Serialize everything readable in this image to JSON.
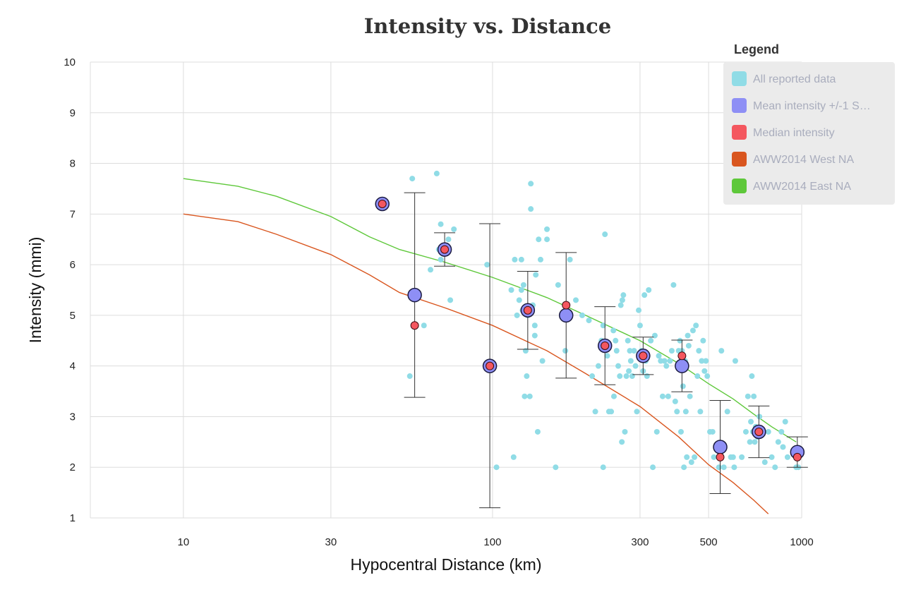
{
  "chart_data": {
    "type": "scatter",
    "title": "Intensity vs. Distance",
    "xlabel": "Hypocentral Distance (km)",
    "ylabel": "Intensity (mmi)",
    "xscale": "log",
    "xlim": [
      5,
      1000
    ],
    "ylim": [
      1,
      10
    ],
    "x_ticks": [
      10,
      30,
      100,
      300,
      500,
      1000
    ],
    "y_ticks": [
      1,
      2,
      3,
      4,
      5,
      6,
      7,
      8,
      9,
      10
    ],
    "grid": true,
    "legend": {
      "title": "Legend",
      "position": "top-right",
      "entries": [
        {
          "label": "All reported data",
          "color": "#90dce6"
        },
        {
          "label": "Mean intensity +/-1 S…",
          "color": "#8e8ff5"
        },
        {
          "label": "Median intensity",
          "color": "#f4575f"
        },
        {
          "label": "AWW2014 West NA",
          "color": "#d9561f"
        },
        {
          "label": "AWW2014 East NA",
          "color": "#5ec83a"
        }
      ]
    },
    "colors": {
      "reported": "#90dce6",
      "mean": "#8e8ff5",
      "median": "#f4575f",
      "west": "#d9561f",
      "east": "#5ec83a",
      "grid": "#dddddd",
      "errorbar": "#333333"
    },
    "series": [
      {
        "name": "All reported data",
        "points": [
          [
            44,
            7.2
          ],
          [
            55,
            7.7
          ],
          [
            66,
            7.8
          ],
          [
            54,
            3.8
          ],
          [
            60,
            4.8
          ],
          [
            63,
            5.9
          ],
          [
            67,
            6.3
          ],
          [
            68,
            6.1
          ],
          [
            72,
            6.5
          ],
          [
            73,
            5.3
          ],
          [
            75,
            6.7
          ],
          [
            68,
            6.8
          ],
          [
            96,
            6.0
          ],
          [
            103,
            2.0
          ],
          [
            115,
            5.5
          ],
          [
            117,
            2.2
          ],
          [
            118,
            6.1
          ],
          [
            120,
            5.0
          ],
          [
            122,
            5.3
          ],
          [
            124,
            6.1
          ],
          [
            124,
            5.5
          ],
          [
            125,
            5.1
          ],
          [
            126,
            5.6
          ],
          [
            127,
            3.4
          ],
          [
            128,
            4.3
          ],
          [
            129,
            3.8
          ],
          [
            130,
            5.0
          ],
          [
            132,
            3.4
          ],
          [
            133,
            7.6
          ],
          [
            133,
            7.1
          ],
          [
            135,
            5.2
          ],
          [
            137,
            4.8
          ],
          [
            137,
            4.6
          ],
          [
            138,
            5.8
          ],
          [
            140,
            2.7
          ],
          [
            141,
            6.5
          ],
          [
            143,
            6.1
          ],
          [
            145,
            4.1
          ],
          [
            150,
            6.7
          ],
          [
            150,
            6.5
          ],
          [
            160,
            2.0
          ],
          [
            163,
            5.6
          ],
          [
            172,
            4.3
          ],
          [
            178,
            6.1
          ],
          [
            186,
            5.3
          ],
          [
            195,
            5.0
          ],
          [
            205,
            4.9
          ],
          [
            210,
            3.8
          ],
          [
            215,
            3.1
          ],
          [
            220,
            4.0
          ],
          [
            225,
            4.5
          ],
          [
            228,
            2.0
          ],
          [
            228,
            4.8
          ],
          [
            231,
            6.6
          ],
          [
            235,
            4.2
          ],
          [
            238,
            3.1
          ],
          [
            242,
            3.1
          ],
          [
            246,
            4.7
          ],
          [
            247,
            3.4
          ],
          [
            250,
            4.5
          ],
          [
            252,
            4.3
          ],
          [
            255,
            4.0
          ],
          [
            258,
            3.8
          ],
          [
            260,
            5.2
          ],
          [
            262,
            2.5
          ],
          [
            263,
            5.3
          ],
          [
            265,
            5.4
          ],
          [
            268,
            2.7
          ],
          [
            271,
            3.8
          ],
          [
            274,
            4.5
          ],
          [
            276,
            3.9
          ],
          [
            278,
            4.3
          ],
          [
            280,
            4.1
          ],
          [
            283,
            3.8
          ],
          [
            287,
            4.3
          ],
          [
            290,
            4.0
          ],
          [
            293,
            3.1
          ],
          [
            297,
            5.1
          ],
          [
            300,
            4.8
          ],
          [
            303,
            4.3
          ],
          [
            307,
            3.9
          ],
          [
            310,
            5.4
          ],
          [
            313,
            4.1
          ],
          [
            316,
            3.8
          ],
          [
            320,
            5.5
          ],
          [
            325,
            4.5
          ],
          [
            330,
            2.0
          ],
          [
            335,
            4.6
          ],
          [
            340,
            2.7
          ],
          [
            345,
            4.2
          ],
          [
            350,
            4.1
          ],
          [
            355,
            3.4
          ],
          [
            360,
            4.1
          ],
          [
            365,
            4.0
          ],
          [
            370,
            3.4
          ],
          [
            375,
            4.1
          ],
          [
            380,
            4.3
          ],
          [
            385,
            5.6
          ],
          [
            390,
            3.3
          ],
          [
            395,
            3.1
          ],
          [
            400,
            4.3
          ],
          [
            404,
            4.5
          ],
          [
            407,
            2.7
          ],
          [
            410,
            4.3
          ],
          [
            413,
            3.6
          ],
          [
            416,
            2.0
          ],
          [
            420,
            4.1
          ],
          [
            422,
            3.1
          ],
          [
            425,
            2.2
          ],
          [
            428,
            4.6
          ],
          [
            431,
            4.4
          ],
          [
            435,
            3.4
          ],
          [
            440,
            2.1
          ],
          [
            445,
            4.7
          ],
          [
            450,
            2.2
          ],
          [
            455,
            4.8
          ],
          [
            460,
            3.8
          ],
          [
            465,
            4.3
          ],
          [
            470,
            3.1
          ],
          [
            475,
            4.1
          ],
          [
            480,
            4.5
          ],
          [
            485,
            3.9
          ],
          [
            490,
            4.1
          ],
          [
            495,
            3.8
          ],
          [
            505,
            2.7
          ],
          [
            515,
            2.7
          ],
          [
            520,
            2.2
          ],
          [
            540,
            2.0
          ],
          [
            550,
            4.3
          ],
          [
            560,
            2.0
          ],
          [
            575,
            3.1
          ],
          [
            590,
            2.2
          ],
          [
            600,
            2.2
          ],
          [
            605,
            2.0
          ],
          [
            610,
            4.1
          ],
          [
            640,
            2.2
          ],
          [
            660,
            2.7
          ],
          [
            670,
            3.4
          ],
          [
            680,
            2.5
          ],
          [
            685,
            2.9
          ],
          [
            690,
            3.8
          ],
          [
            695,
            2.7
          ],
          [
            700,
            3.4
          ],
          [
            705,
            2.5
          ],
          [
            710,
            2.8
          ],
          [
            715,
            2.7
          ],
          [
            720,
            2.6
          ],
          [
            730,
            3.0
          ],
          [
            760,
            2.1
          ],
          [
            780,
            2.7
          ],
          [
            800,
            2.2
          ],
          [
            820,
            2.0
          ],
          [
            840,
            2.5
          ],
          [
            860,
            2.7
          ],
          [
            870,
            2.4
          ],
          [
            885,
            2.9
          ],
          [
            900,
            2.2
          ],
          [
            960,
            2.0
          ],
          [
            975,
            2.0
          ]
        ]
      },
      {
        "name": "Mean intensity +/-1 S…",
        "points": [
          {
            "x": 44,
            "y": 7.2,
            "low": 7.2,
            "high": 7.2
          },
          {
            "x": 56,
            "y": 5.4,
            "low": 3.38,
            "high": 7.42
          },
          {
            "x": 70,
            "y": 6.3,
            "low": 5.97,
            "high": 6.63
          },
          {
            "x": 98,
            "y": 4.0,
            "low": 1.2,
            "high": 6.81
          },
          {
            "x": 130,
            "y": 5.1,
            "low": 4.33,
            "high": 5.87
          },
          {
            "x": 173,
            "y": 5.0,
            "low": 3.76,
            "high": 6.24
          },
          {
            "x": 231,
            "y": 4.4,
            "low": 3.63,
            "high": 5.17
          },
          {
            "x": 307,
            "y": 4.2,
            "low": 3.83,
            "high": 4.57
          },
          {
            "x": 410,
            "y": 4.0,
            "low": 3.49,
            "high": 4.51
          },
          {
            "x": 545,
            "y": 2.4,
            "low": 1.48,
            "high": 3.32
          },
          {
            "x": 727,
            "y": 2.7,
            "low": 2.19,
            "high": 3.21
          },
          {
            "x": 968,
            "y": 2.3,
            "low": 2.0,
            "high": 2.6
          }
        ]
      },
      {
        "name": "Median intensity",
        "points": [
          [
            44,
            7.2
          ],
          [
            56,
            4.8
          ],
          [
            70,
            6.3
          ],
          [
            98,
            4.0
          ],
          [
            130,
            5.1
          ],
          [
            173,
            5.2
          ],
          [
            231,
            4.4
          ],
          [
            307,
            4.2
          ],
          [
            410,
            4.2
          ],
          [
            545,
            2.2
          ],
          [
            727,
            2.7
          ],
          [
            968,
            2.2
          ]
        ]
      },
      {
        "name": "AWW2014 West NA",
        "points": [
          [
            10,
            7.0
          ],
          [
            15,
            6.85
          ],
          [
            20,
            6.6
          ],
          [
            30,
            6.2
          ],
          [
            40,
            5.8
          ],
          [
            50,
            5.45
          ],
          [
            70,
            5.15
          ],
          [
            100,
            4.8
          ],
          [
            150,
            4.3
          ],
          [
            200,
            3.85
          ],
          [
            300,
            3.2
          ],
          [
            400,
            2.6
          ],
          [
            500,
            2.05
          ],
          [
            600,
            1.7
          ],
          [
            700,
            1.35
          ],
          [
            780,
            1.08
          ]
        ]
      },
      {
        "name": "AWW2014 East NA",
        "points": [
          [
            10,
            7.7
          ],
          [
            15,
            7.55
          ],
          [
            20,
            7.35
          ],
          [
            30,
            6.95
          ],
          [
            40,
            6.55
          ],
          [
            50,
            6.3
          ],
          [
            70,
            6.05
          ],
          [
            100,
            5.75
          ],
          [
            150,
            5.35
          ],
          [
            200,
            5.0
          ],
          [
            300,
            4.5
          ],
          [
            400,
            4.05
          ],
          [
            500,
            3.65
          ],
          [
            600,
            3.35
          ],
          [
            700,
            3.05
          ],
          [
            800,
            2.8
          ],
          [
            960,
            2.5
          ]
        ]
      }
    ]
  }
}
